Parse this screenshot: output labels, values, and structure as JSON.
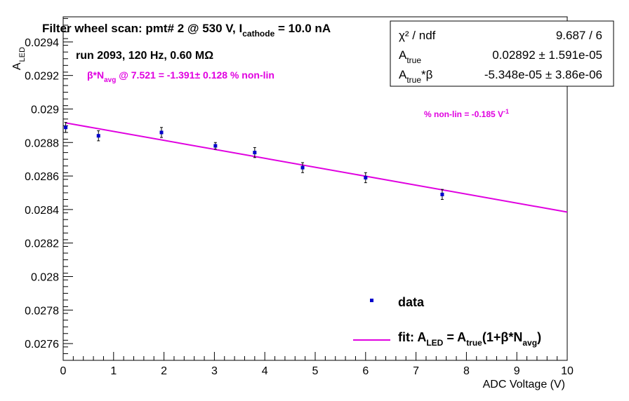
{
  "title": {
    "main": "Filter wheel scan: pmt#   2 @   530 V, I",
    "sub": "cathode",
    "tail": " = 10.0 nA"
  },
  "run_info": "run 2093, 120 Hz, 0.60 MΩ",
  "annotation_beta": {
    "pre": "β*N",
    "sub": "avg",
    "post": " @ 7.521 = -1.391± 0.128 % non-lin"
  },
  "annotation_nonlin": {
    "pre": "% non-lin = -0.185 V",
    "sup": "-1"
  },
  "stats": {
    "chi2_label": "χ² / ndf",
    "chi2_value": "9.687 / 6",
    "atrue_label": "A",
    "atrue_sub": "true",
    "atrue_value": "0.02892 ± 1.591e-05",
    "atrue_beta_label": "A",
    "atrue_beta_sub": "true",
    "atrue_beta_suffix": "*β",
    "atrue_beta_value": "-5.348e-05 ± 3.86e-06"
  },
  "legend": {
    "data_label": "data",
    "fit_label_parts": [
      {
        "t": "fit: A"
      },
      {
        "t": "LED",
        "s": "sub"
      },
      {
        "t": " = A"
      },
      {
        "t": "true",
        "s": "sub"
      },
      {
        "t": "(1+β*N"
      },
      {
        "t": "avg",
        "s": "sub"
      },
      {
        "t": ")"
      }
    ]
  },
  "colors": {
    "data": "#0000cc",
    "fit": "#e000e0",
    "annot": "#e000e0"
  },
  "chart_data": {
    "type": "scatter",
    "xlabel": "ADC Voltage (V)",
    "ylabel_main": "A",
    "ylabel_sub": "LED",
    "xlim": [
      0,
      10
    ],
    "ylim": [
      0.0275,
      0.02955
    ],
    "xticks": [
      0,
      1,
      2,
      3,
      4,
      5,
      6,
      7,
      8,
      9,
      10
    ],
    "yticks": [
      0.0276,
      0.0278,
      0.028,
      0.0282,
      0.0284,
      0.0286,
      0.0288,
      0.029,
      0.0292,
      0.0294
    ],
    "ytick_labels": [
      "0.0276",
      "0.0278",
      "0.028",
      "0.0282",
      "0.0284",
      "0.0286",
      "0.0288",
      "0.029",
      "0.0292",
      "0.0294"
    ],
    "series": [
      {
        "name": "data",
        "x": [
          0.05,
          0.7,
          1.95,
          3.02,
          3.8,
          4.75,
          6.0,
          7.52
        ],
        "y": [
          0.02889,
          0.02884,
          0.02886,
          0.02878,
          0.02874,
          0.02865,
          0.02859,
          0.02849
        ],
        "yerr": [
          3e-05,
          3e-05,
          3e-05,
          2e-05,
          3e-05,
          3e-05,
          3e-05,
          3e-05
        ]
      },
      {
        "name": "fit",
        "x": [
          0.05,
          10.0
        ],
        "y": [
          0.028917,
          0.028385
        ]
      }
    ]
  }
}
